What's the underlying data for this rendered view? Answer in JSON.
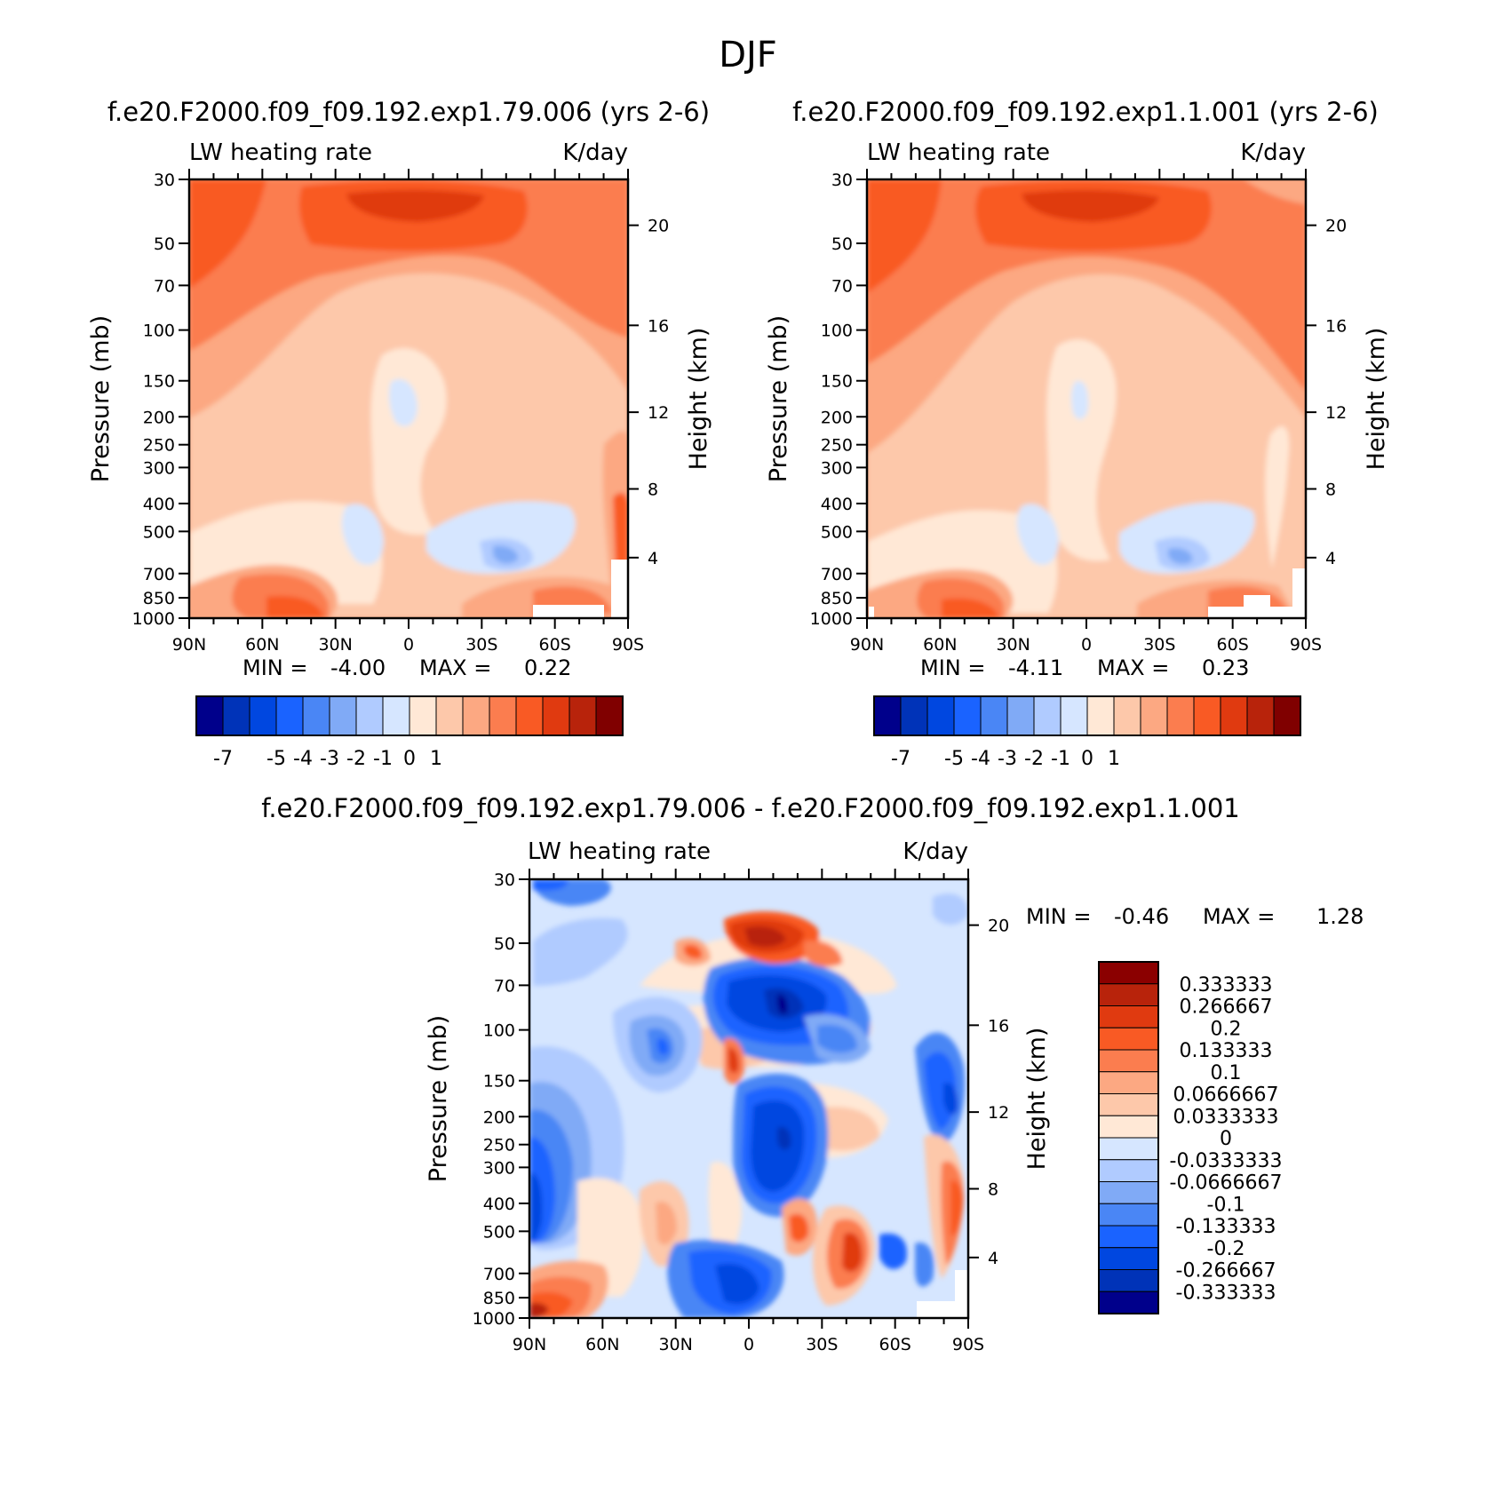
{
  "page_title": "DJF",
  "chart_data": [
    {
      "type": "heatmap",
      "title": "f.e20.F2000.f09_f09.192.exp1.79.006 (yrs 2-6)",
      "left_label": "LW heating rate",
      "right_label": "K/day",
      "ylabel": "Pressure (mb)",
      "ylabel_right": "Height (km)",
      "x_ticks": [
        "90N",
        "60N",
        "30N",
        "0",
        "30S",
        "60S",
        "90S"
      ],
      "y_ticks": [
        "30",
        "50",
        "70",
        "100",
        "150",
        "200",
        "250",
        "300",
        "400",
        "500",
        "700",
        "850",
        "1000"
      ],
      "height_ticks": [
        "20",
        "16",
        "12",
        "8",
        "4"
      ],
      "stats": {
        "min_label": "MIN =",
        "min": "-4.00",
        "max_label": "MAX =",
        "max": "0.22"
      },
      "colorbar_labels": [
        "-7",
        "-5",
        "-4",
        "-3",
        "-2",
        "-1",
        "0",
        "1"
      ],
      "colors": [
        "#00008b",
        "#0033b8",
        "#0047e0",
        "#1a63ff",
        "#4a86f5",
        "#80aaf6",
        "#b0cbff",
        "#d6e6ff",
        "#ffe8d6",
        "#fdc8aa",
        "#fca882",
        "#fb7d4f",
        "#f95a24",
        "#e03a10",
        "#b8230b",
        "#800000"
      ]
    },
    {
      "type": "heatmap",
      "title": "f.e20.F2000.f09_f09.192.exp1.1.001 (yrs 2-6)",
      "left_label": "LW heating rate",
      "right_label": "K/day",
      "ylabel": "Pressure (mb)",
      "ylabel_right": "Height (km)",
      "x_ticks": [
        "90N",
        "60N",
        "30N",
        "0",
        "30S",
        "60S",
        "90S"
      ],
      "y_ticks": [
        "30",
        "50",
        "70",
        "100",
        "150",
        "200",
        "250",
        "300",
        "400",
        "500",
        "700",
        "850",
        "1000"
      ],
      "height_ticks": [
        "20",
        "16",
        "12",
        "8",
        "4"
      ],
      "stats": {
        "min_label": "MIN =",
        "min": "-4.11",
        "max_label": "MAX =",
        "max": "0.23"
      },
      "colorbar_labels": [
        "-7",
        "-5",
        "-4",
        "-3",
        "-2",
        "-1",
        "0",
        "1"
      ],
      "colors": [
        "#00008b",
        "#0033b8",
        "#0047e0",
        "#1a63ff",
        "#4a86f5",
        "#80aaf6",
        "#b0cbff",
        "#d6e6ff",
        "#ffe8d6",
        "#fdc8aa",
        "#fca882",
        "#fb7d4f",
        "#f95a24",
        "#e03a10",
        "#b8230b",
        "#800000"
      ]
    },
    {
      "type": "heatmap",
      "title": "f.e20.F2000.f09_f09.192.exp1.79.006 - f.e20.F2000.f09_f09.192.exp1.1.001",
      "left_label": "LW heating rate",
      "right_label": "K/day",
      "ylabel": "Pressure (mb)",
      "ylabel_right": "Height (km)",
      "x_ticks": [
        "90N",
        "60N",
        "30N",
        "0",
        "30S",
        "60S",
        "90S"
      ],
      "y_ticks": [
        "30",
        "50",
        "70",
        "100",
        "150",
        "200",
        "250",
        "300",
        "400",
        "500",
        "700",
        "850",
        "1000"
      ],
      "height_ticks": [
        "20",
        "16",
        "12",
        "8",
        "4"
      ],
      "stats": {
        "min_label": "MIN =",
        "min": "-0.46",
        "max_label": "MAX =",
        "max": "1.28"
      },
      "colorbar_labels": [
        "0.333333",
        "0.266667",
        "0.2",
        "0.133333",
        "0.1",
        "0.0666667",
        "0.0333333",
        "0",
        "-0.0333333",
        "-0.0666667",
        "-0.1",
        "-0.133333",
        "-0.2",
        "-0.266667",
        "-0.333333"
      ],
      "colors": [
        "#8b0000",
        "#b8230b",
        "#e03a10",
        "#f95a24",
        "#fb7d4f",
        "#fca882",
        "#fdc8aa",
        "#ffe8d6",
        "#d6e6ff",
        "#b0cbff",
        "#80aaf6",
        "#4a86f5",
        "#1a63ff",
        "#0047e0",
        "#0033b8",
        "#00008b"
      ]
    }
  ]
}
